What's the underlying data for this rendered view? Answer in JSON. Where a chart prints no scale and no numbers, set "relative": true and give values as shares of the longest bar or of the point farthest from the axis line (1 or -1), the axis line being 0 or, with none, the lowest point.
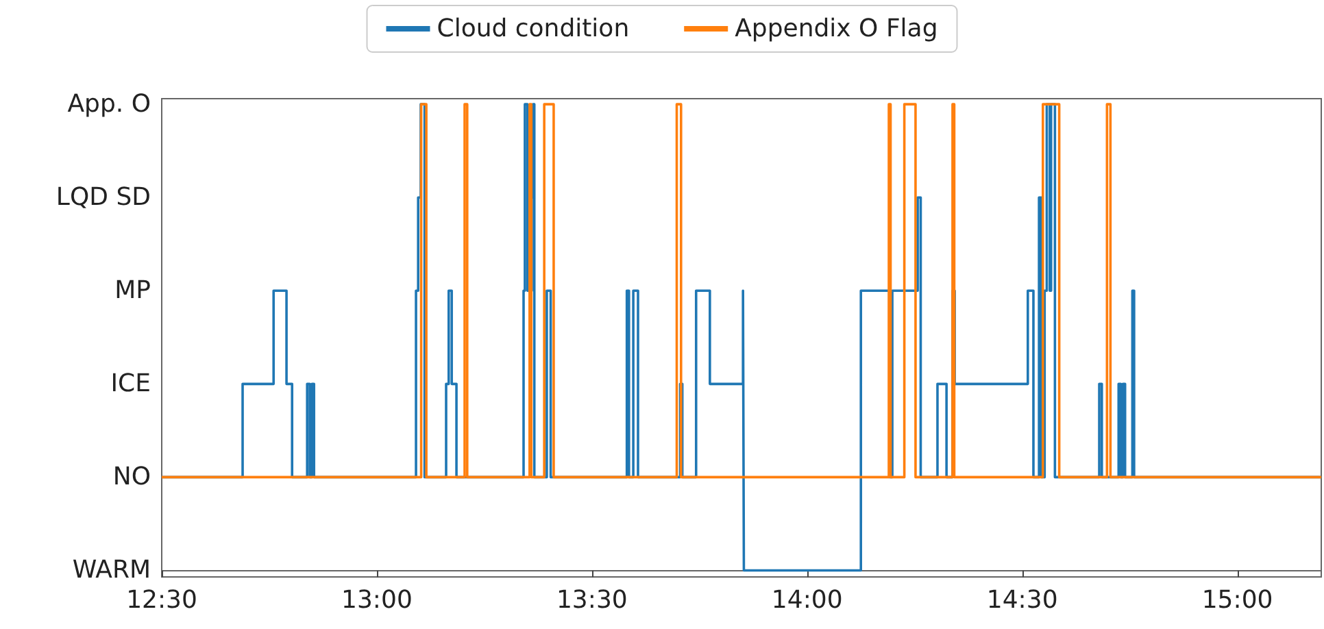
{
  "chart_data": {
    "type": "step",
    "relative": true,
    "legend": "top",
    "grid": false,
    "xlim": [
      12.5,
      15.195
    ],
    "xticks": [
      {
        "value": 12.5,
        "label": "12:30"
      },
      {
        "value": 13,
        "label": "13:00"
      },
      {
        "value": 13.5,
        "label": "13:30"
      },
      {
        "value": 14,
        "label": "14:00"
      },
      {
        "value": 14.5,
        "label": "14:30"
      },
      {
        "value": 15,
        "label": "15:00"
      }
    ],
    "annotations": [
      "WARM",
      "NO",
      "ICE",
      "MP",
      "LQD SD",
      "App. O"
    ],
    "series": [
      {
        "name": "Cloud condition",
        "color": "#1f77b4",
        "x": [
          12.5,
          12.688,
          12.76,
          12.79,
          12.803,
          12.838,
          12.844,
          12.849,
          12.854,
          13.091,
          13.096,
          13.102,
          13.111,
          13.161,
          13.167,
          13.174,
          13.185,
          13.341,
          13.344,
          13.35,
          13.36,
          13.363,
          13.366,
          13.395,
          13.404,
          13.581,
          13.586,
          13.596,
          13.607,
          13.705,
          13.71,
          13.742,
          13.774,
          13.851,
          13.853,
          14.125,
          14.191,
          14.198,
          14.257,
          14.264,
          14.303,
          14.324,
          14.338,
          14.343,
          14.513,
          14.526,
          14.539,
          14.544,
          14.552,
          14.557,
          14.564,
          14.567,
          14.576,
          14.679,
          14.685,
          14.724,
          14.729,
          14.734,
          14.739,
          14.756,
          14.76,
          15.195
        ],
        "values": [
          0.2,
          0.4,
          0.6,
          0.4,
          0.2,
          0.4,
          0.2,
          0.4,
          0.2,
          0.6,
          0.8,
          1,
          0.2,
          0.4,
          0.6,
          0.4,
          0.2,
          0.6,
          1,
          0.6,
          0.8,
          1,
          0.2,
          0.6,
          0.2,
          0.6,
          0.2,
          0.6,
          0.2,
          0.4,
          0.2,
          0.6,
          0.4,
          0.6,
          0,
          0.6,
          0.2,
          0.6,
          0.8,
          0.2,
          0.4,
          0.2,
          0.6,
          0.4,
          0.6,
          0.2,
          0.8,
          0.2,
          0.6,
          1,
          0.6,
          1,
          0.2,
          0.4,
          0.2,
          0.4,
          0.2,
          0.4,
          0.2,
          0.6,
          0.2,
          0.2
        ]
      },
      {
        "name": "Appendix O Flag",
        "color": "#ff7f0e",
        "x": [
          12.5,
          13.103,
          13.115,
          13.204,
          13.21,
          13.355,
          13.359,
          13.389,
          13.411,
          13.697,
          13.707,
          14.19,
          14.194,
          14.226,
          14.252,
          14.338,
          14.342,
          14.548,
          14.586,
          14.697,
          14.705,
          15.195
        ],
        "values": [
          0.2,
          1,
          0.2,
          1,
          0.2,
          1,
          0.2,
          1,
          0.2,
          1,
          0.2,
          1,
          0.2,
          1,
          0.2,
          1,
          0.2,
          1,
          0.2,
          1,
          0.2,
          0.2
        ]
      }
    ]
  }
}
